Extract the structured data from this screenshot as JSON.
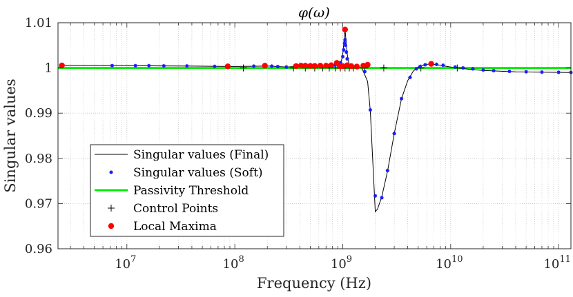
{
  "chart_data": {
    "type": "line",
    "title": "φ(ω)",
    "xlabel": "Frequency (Hz)",
    "ylabel": "Singular values",
    "xscale": "log",
    "xlim": [
      2300000.0,
      130000000000.0
    ],
    "ylim": [
      0.96,
      1.01
    ],
    "y_ticks": [
      0.96,
      0.97,
      0.98,
      0.99,
      1.0,
      1.01
    ],
    "y_tick_labels": [
      "0.96",
      "0.97",
      "0.98",
      "0.99",
      "1",
      "1.01"
    ],
    "x_ticks": [
      10000000.0,
      100000000.0,
      1000000000.0,
      10000000000.0,
      100000000000.0
    ],
    "x_tick_labels": [
      {
        "base": "10",
        "exp": "7"
      },
      {
        "base": "10",
        "exp": "8"
      },
      {
        "base": "10",
        "exp": "9"
      },
      {
        "base": "10",
        "exp": "10"
      },
      {
        "base": "10",
        "exp": "11"
      }
    ],
    "grid": "dotted",
    "legend_position": "lower-left",
    "colors": {
      "final": "#000000",
      "soft": "#1a1aff",
      "threshold": "#00ee00",
      "control": "#000000",
      "maxima": "#ff0000",
      "grid": "#bfbfbf",
      "axis": "#262626"
    },
    "legend": [
      {
        "label": "Singular values (Final)",
        "kind": "line",
        "color": "#000000"
      },
      {
        "label": "Singular values (Soft)",
        "kind": "star",
        "color": "#1a1aff"
      },
      {
        "label": "Passivity Threshold",
        "kind": "thickline",
        "color": "#00ee00"
      },
      {
        "label": "Control Points",
        "kind": "plus",
        "color": "#000000"
      },
      {
        "label": "Local Maxima",
        "kind": "dot",
        "color": "#ff0000"
      }
    ],
    "series": [
      {
        "name": "Singular values (Final)",
        "points": [
          [
            2500000.0,
            1.00055
          ],
          [
            5000000.0,
            1.00053
          ],
          [
            10000000.0,
            1.0005
          ],
          [
            20000000.0,
            1.00046
          ],
          [
            40000000.0,
            1.00041
          ],
          [
            70000000.0,
            1.00037
          ],
          [
            100000000.0,
            1.00034
          ],
          [
            150000000.0,
            1.00038
          ],
          [
            200000000.0,
            1.00043
          ],
          [
            250000000.0,
            1.00032
          ],
          [
            300000000.0,
            1.0002
          ],
          [
            350000000.0,
            1.0003
          ],
          [
            400000000.0,
            1.00045
          ],
          [
            500000000.0,
            1.00045
          ],
          [
            600000000.0,
            1.0004
          ],
          [
            700000000.0,
            1.0004
          ],
          [
            800000000.0,
            1.0005
          ],
          [
            900000000.0,
            1.0006
          ],
          [
            970000000.0,
            1.0015
          ],
          [
            1000000000.0,
            1.003
          ],
          [
            1050000000.0,
            1.0085
          ],
          [
            1100000000.0,
            1.003
          ],
          [
            1150000000.0,
            1.0006
          ],
          [
            1300000000.0,
            1.0003
          ],
          [
            1500000000.0,
            1.0
          ],
          [
            1700000000.0,
            0.997
          ],
          [
            1800000000.0,
            0.9905
          ],
          [
            1900000000.0,
            0.979
          ],
          [
            2000000000.0,
            0.9682
          ],
          [
            2100000000.0,
            0.9688
          ],
          [
            2300000000.0,
            0.9715
          ],
          [
            2600000000.0,
            0.9772
          ],
          [
            3000000000.0,
            0.9855
          ],
          [
            3500000000.0,
            0.9932
          ],
          [
            4000000000.0,
            0.9972
          ],
          [
            4500000000.0,
            0.9993
          ],
          [
            5000000000.0,
            1.0002
          ],
          [
            6000000000.0,
            1.0008
          ],
          [
            6600000000.0,
            1.0009
          ],
          [
            8000000000.0,
            1.0006
          ],
          [
            10000000000.0,
            1.0002
          ],
          [
            15000000000.0,
            0.9997
          ],
          [
            20000000000.0,
            0.99945
          ],
          [
            40000000000.0,
            0.99915
          ],
          [
            70000000000.0,
            0.99905
          ],
          [
            130000000000.0,
            0.999
          ]
        ]
      },
      {
        "name": "Singular values (Soft)",
        "points": [
          [
            2500000.0,
            1.00055
          ],
          [
            7300000.0,
            1.00051
          ],
          [
            12000000.0,
            1.0005
          ],
          [
            16000000.0,
            1.0005
          ],
          [
            22000000.0,
            1.00047
          ],
          [
            36000000.0,
            1.00044
          ],
          [
            65000000.0,
            1.00035
          ],
          [
            86000000.0,
            1.00033
          ],
          [
            150000000.0,
            1.0004
          ],
          [
            190000000.0,
            1.0005
          ],
          [
            220000000.0,
            1.0004
          ],
          [
            250000000.0,
            1.0003
          ],
          [
            300000000.0,
            1.0002
          ],
          [
            380000000.0,
            1.0004
          ],
          [
            450000000.0,
            1.00045
          ],
          [
            550000000.0,
            1.00045
          ],
          [
            700000000.0,
            1.0005
          ],
          [
            850000000.0,
            1.0006
          ],
          [
            950000000.0,
            1.0012
          ],
          [
            1000000000.0,
            1.0025
          ],
          [
            1020000000.0,
            1.004
          ],
          [
            1040000000.0,
            1.0055
          ],
          [
            1050000000.0,
            1.0062
          ],
          [
            1060000000.0,
            1.005
          ],
          [
            1080000000.0,
            1.0035
          ],
          [
            1100000000.0,
            1.002
          ],
          [
            1300000000.0,
            1.0003
          ],
          [
            1600000000.0,
            0.9992
          ],
          [
            1800000000.0,
            0.9907
          ],
          [
            2000000000.0,
            0.9717
          ],
          [
            2300000000.0,
            0.9713
          ],
          [
            2600000000.0,
            0.9773
          ],
          [
            3000000000.0,
            0.9855
          ],
          [
            3500000000.0,
            0.9932
          ],
          [
            4200000000.0,
            0.9979
          ],
          [
            4800000000.0,
            0.9998
          ],
          [
            5200000000.0,
            1.0003
          ],
          [
            5800000000.0,
            1.0007
          ],
          [
            6600000000.0,
            1.0009
          ],
          [
            7400000000.0,
            1.0008
          ],
          [
            8500000000.0,
            1.0006
          ],
          [
            11000000000.0,
            1.0002
          ],
          [
            13000000000.0,
            1.0
          ],
          [
            16000000000.0,
            0.9998
          ],
          [
            20000000000.0,
            0.99955
          ],
          [
            25000000000.0,
            0.9994
          ],
          [
            35000000000.0,
            0.99925
          ],
          [
            50000000000.0,
            0.99915
          ],
          [
            70000000000.0,
            0.99908
          ],
          [
            100000000000.0,
            0.99905
          ],
          [
            130000000000.0,
            0.999
          ]
        ]
      },
      {
        "name": "Passivity Threshold",
        "points": [
          [
            2300000.0,
            1.0
          ],
          [
            130000000000.0,
            1.0
          ]
        ]
      },
      {
        "name": "Control Points",
        "points": [
          [
            120000000.0,
            1.0
          ],
          [
            350000000.0,
            1.0
          ],
          [
            450000000.0,
            1.0
          ],
          [
            550000000.0,
            1.0
          ],
          [
            650000000.0,
            1.0
          ],
          [
            750000000.0,
            1.0
          ],
          [
            850000000.0,
            1.0
          ],
          [
            950000000.0,
            1.0
          ],
          [
            1050000000.0,
            1.0
          ],
          [
            1150000000.0,
            1.0
          ],
          [
            1250000000.0,
            1.0
          ],
          [
            1600000000.0,
            1.0
          ],
          [
            2400000000.0,
            1.0
          ],
          [
            5300000000.0,
            1.0
          ],
          [
            11500000000.0,
            1.0
          ]
        ]
      },
      {
        "name": "Local Maxima",
        "points": [
          [
            2500000.0,
            1.00055
          ],
          [
            86000000.0,
            1.00035
          ],
          [
            190000000.0,
            1.0005
          ],
          [
            370000000.0,
            1.0004
          ],
          [
            410000000.0,
            1.0005
          ],
          [
            450000000.0,
            1.0005
          ],
          [
            500000000.0,
            1.00045
          ],
          [
            550000000.0,
            1.00045
          ],
          [
            620000000.0,
            1.0005
          ],
          [
            700000000.0,
            1.0005
          ],
          [
            780000000.0,
            1.0006
          ],
          [
            880000000.0,
            1.0011
          ],
          [
            940000000.0,
            1.0004
          ],
          [
            1000000000.0,
            1.0004
          ],
          [
            1050000000.0,
            1.0085
          ],
          [
            1100000000.0,
            1.0006
          ],
          [
            1200000000.0,
            1.0004
          ],
          [
            1350000000.0,
            1.0003
          ],
          [
            1550000000.0,
            1.0005
          ],
          [
            1700000000.0,
            1.0007
          ],
          [
            6600000000.0,
            1.0009
          ]
        ]
      }
    ]
  }
}
